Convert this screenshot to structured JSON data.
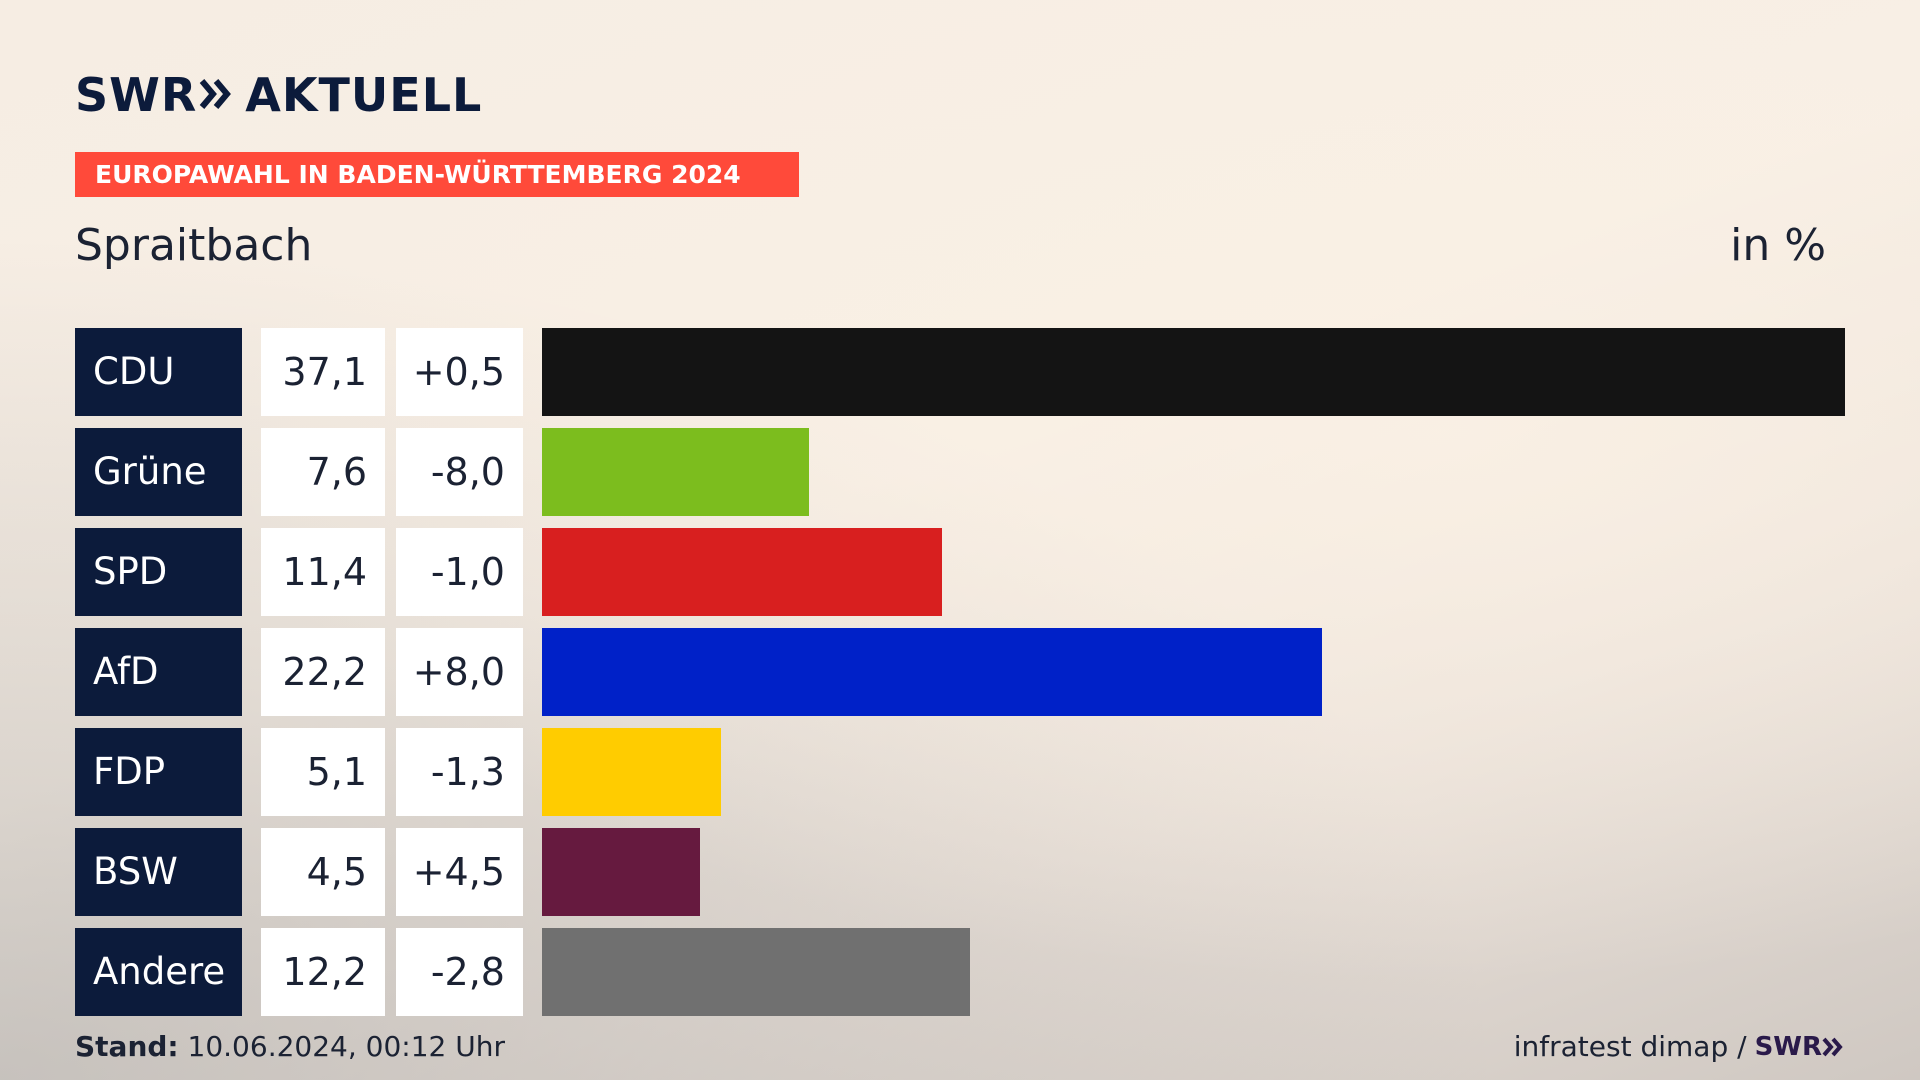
{
  "brand": {
    "logo_left": "SWR",
    "logo_right": "AKTUELL",
    "footer_logo": "SWR"
  },
  "banner": {
    "text": "EUROPAWAHL IN BADEN-WÜRTTEMBERG 2024",
    "color": "#ff4a3a"
  },
  "place": "Spraitbach",
  "unit": "in %",
  "footer": {
    "stand_label": "Stand:",
    "stand_value": "10.06.2024, 00:12 Uhr",
    "source": "infratest dimap /"
  },
  "chart_data": {
    "type": "bar",
    "orientation": "horizontal",
    "categories": [
      "CDU",
      "Grüne",
      "SPD",
      "AfD",
      "FDP",
      "BSW",
      "Andere"
    ],
    "values": [
      37.1,
      7.6,
      11.4,
      22.2,
      5.1,
      4.5,
      12.2
    ],
    "value_labels": [
      "37,1",
      "7,6",
      "11,4",
      "22,2",
      "5,1",
      "4,5",
      "12,2"
    ],
    "changes": [
      "+0,5",
      "-8,0",
      "-1,0",
      "+8,0",
      "-1,3",
      "+4,5",
      "-2,8"
    ],
    "colors": [
      "#141414",
      "#7cbd1e",
      "#d81f1f",
      "#0021c8",
      "#ffcc00",
      "#661a3f",
      "#707070"
    ],
    "xlim": [
      0,
      37.1
    ]
  }
}
